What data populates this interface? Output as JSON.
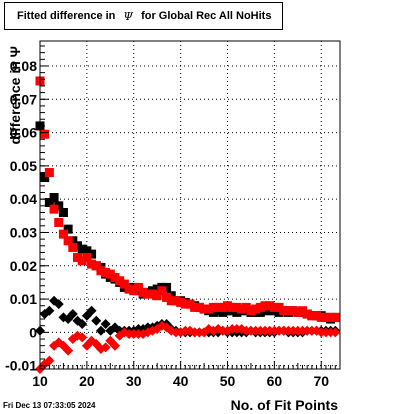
{
  "title": {
    "prefix": "Fitted difference in",
    "symbol": "Ψ",
    "suffix": "for Global Rec All NoHits"
  },
  "timestamp": "Fri Dec 13 07:33:05 2024",
  "chart_data": {
    "type": "scatter",
    "xlabel": "No. of Fit Points",
    "ylabel": "difference in Ψ",
    "xlim": [
      10,
      74
    ],
    "ylim": [
      -0.011,
      0.0875
    ],
    "xticks": [
      10,
      20,
      30,
      40,
      50,
      60,
      70
    ],
    "yticks": [
      -0.01,
      0,
      0.01,
      0.02,
      0.03,
      0.04,
      0.05,
      0.06,
      0.07,
      0.08
    ],
    "ytick_labels": [
      "-0.01",
      "0",
      "0.01",
      "0.02",
      "0.03",
      "0.04",
      "0.05",
      "0.06",
      "0.07",
      "0.08"
    ],
    "grid": true,
    "series": [
      {
        "marker": "square",
        "color": "#000000",
        "x": [
          10,
          11,
          12,
          13,
          14,
          15,
          16,
          17,
          18,
          19,
          20,
          21,
          22,
          23,
          24,
          25,
          26,
          27,
          28,
          29,
          30,
          31,
          32,
          33,
          34,
          35,
          36,
          37,
          38,
          39,
          40,
          41,
          42,
          43,
          44,
          45,
          46,
          47,
          48,
          49,
          50,
          51,
          52,
          53,
          54,
          55,
          56,
          57,
          58,
          59,
          60,
          61,
          62,
          63,
          64,
          65,
          66,
          67,
          68,
          69,
          70,
          71,
          72,
          73
        ],
        "y": [
          0.062,
          0.0465,
          0.039,
          0.0405,
          0.038,
          0.036,
          0.031,
          0.0275,
          0.026,
          0.025,
          0.0245,
          0.0235,
          0.02,
          0.0195,
          0.0175,
          0.0165,
          0.016,
          0.015,
          0.0135,
          0.013,
          0.0135,
          0.0125,
          0.0115,
          0.012,
          0.0125,
          0.013,
          0.0135,
          0.0135,
          0.011,
          0.0095,
          0.0095,
          0.009,
          0.0085,
          0.008,
          0.0075,
          0.007,
          0.0065,
          0.006,
          0.0065,
          0.006,
          0.0065,
          0.0065,
          0.006,
          0.0065,
          0.0065,
          0.006,
          0.006,
          0.006,
          0.0065,
          0.0065,
          0.0065,
          0.006,
          0.0065,
          0.006,
          0.0065,
          0.006,
          0.006,
          0.0055,
          0.005,
          0.005,
          0.005,
          0.0045,
          0.004,
          0.0045
        ]
      },
      {
        "marker": "square",
        "color": "#ff0000",
        "x": [
          10,
          11,
          12,
          13,
          14,
          15,
          16,
          17,
          18,
          19,
          20,
          21,
          22,
          23,
          24,
          25,
          26,
          27,
          28,
          29,
          30,
          31,
          32,
          33,
          34,
          35,
          36,
          37,
          38,
          39,
          40,
          41,
          42,
          43,
          44,
          45,
          46,
          47,
          48,
          49,
          50,
          51,
          52,
          53,
          54,
          55,
          56,
          57,
          58,
          59,
          60,
          61,
          62,
          63,
          64,
          65,
          66,
          67,
          68,
          69,
          70,
          71,
          72,
          73
        ],
        "y": [
          0.0755,
          0.0595,
          0.048,
          0.037,
          0.033,
          0.0295,
          0.0275,
          0.0255,
          0.0225,
          0.0215,
          0.0225,
          0.0205,
          0.02,
          0.0185,
          0.018,
          0.0175,
          0.0165,
          0.0155,
          0.0145,
          0.013,
          0.0125,
          0.0135,
          0.012,
          0.0115,
          0.0115,
          0.011,
          0.0125,
          0.0105,
          0.0095,
          0.0095,
          0.009,
          0.0085,
          0.0085,
          0.0075,
          0.0075,
          0.007,
          0.007,
          0.0075,
          0.0075,
          0.0075,
          0.008,
          0.0075,
          0.0075,
          0.007,
          0.0075,
          0.0065,
          0.007,
          0.0075,
          0.008,
          0.008,
          0.0075,
          0.0075,
          0.0065,
          0.0065,
          0.0065,
          0.006,
          0.0065,
          0.0055,
          0.005,
          0.005,
          0.0045,
          0.0045,
          0.0045,
          0.0045
        ]
      },
      {
        "marker": "diamond",
        "color": "#000000",
        "x": [
          10,
          11,
          12,
          13,
          14,
          15,
          16,
          17,
          18,
          19,
          20,
          21,
          22,
          23,
          24,
          25,
          26,
          27,
          28,
          29,
          30,
          31,
          32,
          33,
          34,
          35,
          36,
          37,
          38,
          39,
          40,
          41,
          42,
          43,
          44,
          45,
          46,
          47,
          48,
          49,
          50,
          51,
          52,
          53,
          54,
          55,
          56,
          57,
          58,
          59,
          60,
          61,
          62,
          63,
          64,
          65,
          66,
          67,
          68,
          69,
          70,
          71,
          72,
          73
        ],
        "y": [
          0.0005,
          0.0055,
          0.0065,
          0.0095,
          0.0085,
          0.0045,
          0.004,
          0.0055,
          0.0035,
          0.0025,
          0.005,
          0.0065,
          0.0035,
          0.0005,
          0.0025,
          0.0005,
          0.0015,
          0.0005,
          0.0005,
          0.0005,
          0.0005,
          0.001,
          0.001,
          0.0015,
          0.0015,
          0.002,
          0.0025,
          0.0025,
          0.001,
          0.0005,
          0.0,
          0.0,
          0.0,
          0.0,
          0.0,
          0.0,
          0.0,
          0.0,
          0.0,
          0.0005,
          0.0,
          0.0,
          0.0,
          0.0,
          0.0,
          0.0005,
          0.0,
          0.0,
          0.0,
          0.0,
          0.0,
          0.0005,
          0.0005,
          0.0,
          0.0,
          0.0,
          0.0,
          0.0005,
          0.0005,
          0.0005,
          0.0005,
          0.0005,
          0.0005,
          0.0005
        ]
      },
      {
        "marker": "diamond",
        "color": "#ff0000",
        "x": [
          10,
          11,
          12,
          13,
          14,
          15,
          16,
          17,
          18,
          19,
          20,
          21,
          22,
          23,
          24,
          25,
          26,
          27,
          28,
          29,
          30,
          31,
          32,
          33,
          34,
          35,
          36,
          37,
          38,
          39,
          40,
          41,
          42,
          43,
          44,
          45,
          46,
          47,
          48,
          49,
          50,
          51,
          52,
          53,
          54,
          55,
          56,
          57,
          58,
          59,
          60,
          61,
          62,
          63,
          64,
          65,
          66,
          67,
          68,
          69,
          70,
          71,
          72,
          73
        ],
        "y": [
          -0.011,
          -0.0095,
          -0.0085,
          -0.004,
          -0.003,
          -0.004,
          -0.0055,
          -0.002,
          -0.001,
          -0.0015,
          -0.004,
          -0.0025,
          -0.0035,
          -0.005,
          -0.0045,
          -0.0025,
          -0.004,
          -0.001,
          0.0,
          -0.0005,
          -0.0005,
          -0.0005,
          -0.0005,
          0.0,
          0.0005,
          0.001,
          0.002,
          0.0015,
          0.0005,
          0.0,
          0.0,
          0.0005,
          0.0005,
          0.0,
          0.0,
          0.0,
          0.001,
          0.0005,
          0.001,
          0.0005,
          0.0005,
          0.001,
          0.001,
          0.001,
          0.0005,
          0.0005,
          0.0005,
          0.0005,
          0.0005,
          0.0005,
          0.0005,
          0.0005,
          0.0005,
          0.0005,
          0.0005,
          0.0005,
          0.0005,
          0.0005,
          0.0005,
          0.0005,
          0.0,
          0.0,
          0.0,
          0.0
        ]
      }
    ]
  }
}
